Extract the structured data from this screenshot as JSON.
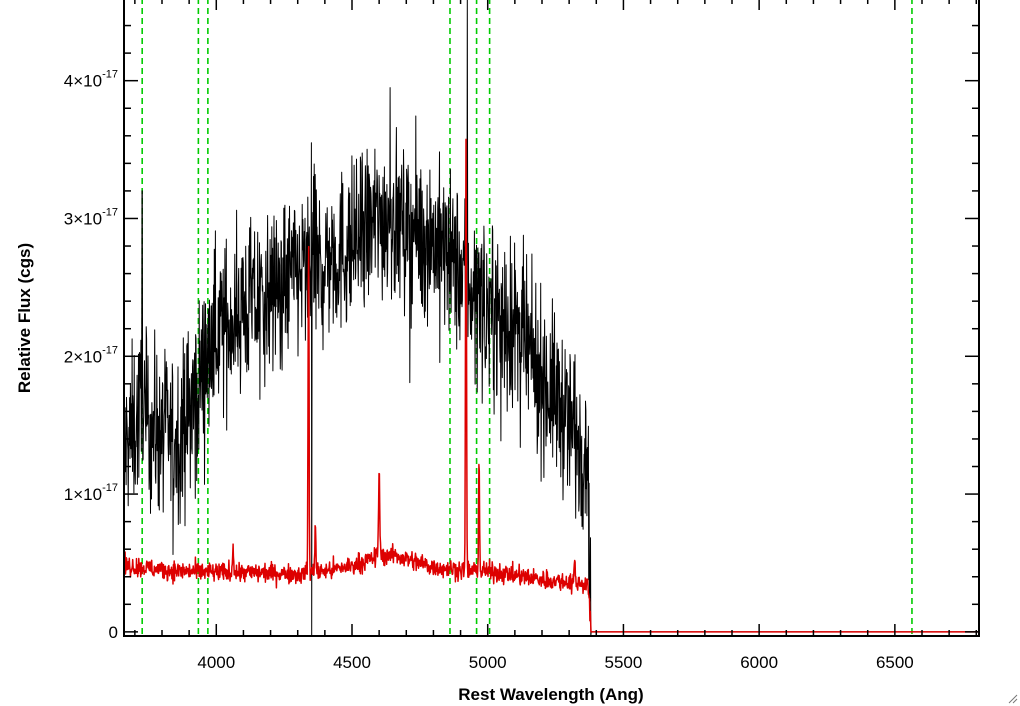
{
  "chart_data": {
    "type": "line",
    "title": "",
    "xlabel": "Rest Wavelength (Ang)",
    "ylabel": "Relative Flux (cgs)",
    "xlim": [
      3660,
      6810
    ],
    "ylim": [
      -3e-19,
      4.6e-17
    ],
    "x_ticks": [
      {
        "value": 4000,
        "label": "4000"
      },
      {
        "value": 4500,
        "label": "4500"
      },
      {
        "value": 5000,
        "label": "5000"
      },
      {
        "value": 5500,
        "label": "5500"
      },
      {
        "value": 6000,
        "label": "6000"
      },
      {
        "value": 6500,
        "label": "6500"
      }
    ],
    "y_ticks": [
      {
        "value": 0,
        "mantissa": "0",
        "exponent": ""
      },
      {
        "value": 1e-17,
        "mantissa": "1×10",
        "exponent": "-17"
      },
      {
        "value": 2e-17,
        "mantissa": "2×10",
        "exponent": "-17"
      },
      {
        "value": 3e-17,
        "mantissa": "3×10",
        "exponent": "-17"
      },
      {
        "value": 4e-17,
        "mantissa": "4×10",
        "exponent": "-17"
      }
    ],
    "grid": false,
    "legend": "none",
    "vertical_lines": {
      "color": "#00cc00",
      "style": "dashed",
      "x": [
        3727,
        3934,
        3969,
        4861,
        4959,
        5007,
        6563
      ]
    },
    "series": [
      {
        "color": "#000000",
        "profile_x": [
          3660,
          3700,
          3720,
          3750,
          3800,
          3850,
          3900,
          3950,
          3980,
          4000,
          4050,
          4100,
          4150,
          4200,
          4250,
          4300,
          4350,
          4400,
          4450,
          4500,
          4550,
          4600,
          4650,
          4700,
          4750,
          4800,
          4850,
          4900,
          4950,
          5000,
          5050,
          5100,
          5150,
          5200,
          5250,
          5300,
          5340,
          5370,
          5380,
          6810
        ],
        "profile_y": [
          1.3e-17,
          1.5e-17,
          1.6e-17,
          1.5e-17,
          1.45e-17,
          1.4e-17,
          1.6e-17,
          1.9e-17,
          2.1e-17,
          2.2e-17,
          2.25e-17,
          2.35e-17,
          2.4e-17,
          2.45e-17,
          2.55e-17,
          2.6e-17,
          2.65e-17,
          2.7e-17,
          2.75e-17,
          2.8e-17,
          2.9e-17,
          3e-17,
          3e-17,
          2.95e-17,
          2.9e-17,
          2.85e-17,
          2.75e-17,
          2.6e-17,
          2.5e-17,
          2.35e-17,
          2.3e-17,
          2.2e-17,
          2e-17,
          1.85e-17,
          1.7e-17,
          1.55e-17,
          1.4e-17,
          1.3e-17,
          0,
          0
        ],
        "noise_sigma": 3e-18,
        "cutoff_x": 5380,
        "spikes": [
          {
            "x": 3727,
            "y": 3.2e-17
          },
          {
            "x": 4350,
            "y": 3.55e-17
          },
          {
            "x": 4352,
            "y": -3e-19
          },
          {
            "x": 4640,
            "y": 3.95e-17
          },
          {
            "x": 4925,
            "y": 4.6e-17
          }
        ]
      },
      {
        "color": "#dd0000",
        "profile_x": [
          3660,
          3800,
          3900,
          4000,
          4100,
          4200,
          4300,
          4400,
          4500,
          4600,
          4650,
          4700,
          4800,
          4900,
          5000,
          5100,
          5200,
          5300,
          5370,
          5380,
          6810
        ],
        "profile_y": [
          4.8e-18,
          4.5e-18,
          4.4e-18,
          4.3e-18,
          4.3e-18,
          4.3e-18,
          4.2e-18,
          4.4e-18,
          4.8e-18,
          5.5e-18,
          5.6e-18,
          5.3e-18,
          4.7e-18,
          4.5e-18,
          4.4e-18,
          4.1e-18,
          3.8e-18,
          3.6e-18,
          3.5e-18,
          0,
          0
        ],
        "noise_sigma": 3.5e-19,
        "cutoff_x": 5380,
        "peaks": [
          {
            "x": 4062,
            "h": 2e-18,
            "w": 3
          },
          {
            "x": 4340,
            "h": 2.45e-17,
            "w": 2.5
          },
          {
            "x": 4365,
            "h": 4e-18,
            "w": 2.5
          },
          {
            "x": 4600,
            "h": 6.5e-18,
            "w": 3
          },
          {
            "x": 4920,
            "h": 3.05e-17,
            "w": 2.5
          },
          {
            "x": 4968,
            "h": 8e-18,
            "w": 2.5
          },
          {
            "x": 5320,
            "h": 1.5e-18,
            "w": 3
          }
        ]
      }
    ]
  }
}
